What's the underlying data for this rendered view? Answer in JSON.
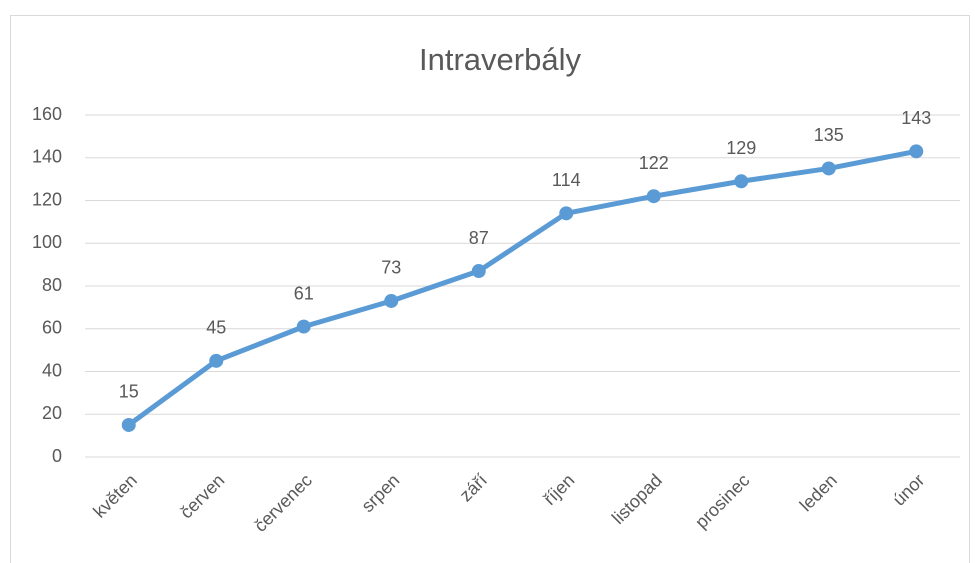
{
  "chart_data": {
    "type": "line",
    "title": "Intraverbály",
    "categories": [
      "květen",
      "červen",
      "červenec",
      "srpen",
      "září",
      "říjen",
      "listopad",
      "prosinec",
      "leden",
      "únor"
    ],
    "values": [
      15,
      45,
      61,
      73,
      87,
      114,
      122,
      129,
      135,
      143
    ],
    "color": "#5b9bd5",
    "ylim": [
      0,
      160
    ],
    "yticks": [
      0,
      20,
      40,
      60,
      80,
      100,
      120,
      140,
      160
    ],
    "grid": true
  }
}
